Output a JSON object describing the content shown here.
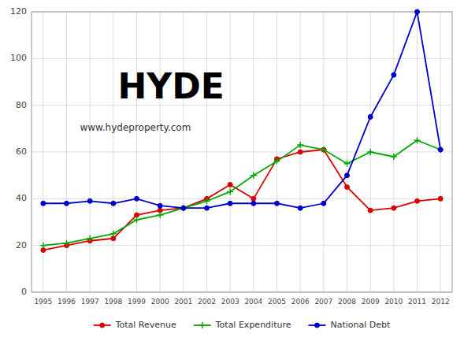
{
  "chart_data": {
    "type": "line",
    "x": [
      1995,
      1996,
      1997,
      1998,
      1999,
      2000,
      2001,
      2002,
      2003,
      2004,
      2005,
      2006,
      2007,
      2008,
      2009,
      2010,
      2011,
      2012
    ],
    "xlim": [
      1994.5,
      2012.5
    ],
    "xticks": [
      1995,
      1996,
      1997,
      1998,
      1999,
      2000,
      2001,
      2002,
      2003,
      2004,
      2005,
      2006,
      2007,
      2008,
      2009,
      2010,
      2011,
      2012
    ],
    "ylim": [
      0,
      120
    ],
    "yticks": [
      0,
      20,
      40,
      60,
      80,
      100,
      120
    ],
    "grid": true,
    "legend": "bottom",
    "annotations": [
      "HYDE",
      "www.hydeproperty.com"
    ],
    "series": [
      {
        "name": "Total Revenue",
        "color": "#dd0000",
        "marker": "circle",
        "values": [
          18,
          20,
          22,
          23,
          33,
          35,
          36,
          40,
          46,
          40,
          57,
          60,
          61,
          45,
          35,
          36,
          39,
          40
        ]
      },
      {
        "name": "Total Expenditure",
        "color": "#00aa00",
        "marker": "plus",
        "values": [
          20,
          21,
          23,
          25,
          31,
          33,
          36,
          39,
          43,
          50,
          56,
          63,
          61,
          55,
          60,
          58,
          65,
          61
        ]
      },
      {
        "name": "National Debt",
        "color": "#0000cc",
        "marker": "circle",
        "values": [
          38,
          38,
          39,
          38,
          40,
          37,
          36,
          36,
          38,
          38,
          38,
          36,
          38,
          50,
          75,
          93,
          120,
          61
        ]
      }
    ]
  }
}
